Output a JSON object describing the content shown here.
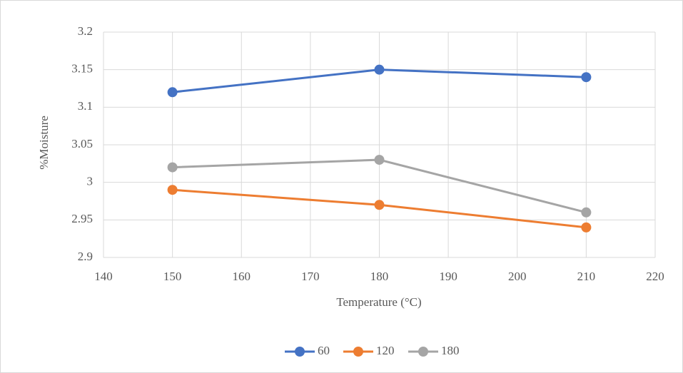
{
  "chart_data": {
    "type": "line",
    "x_label": "Temperature (°C)",
    "y_label": "%Moisture",
    "x": [
      150,
      180,
      210
    ],
    "series": [
      {
        "name": "60",
        "color": "#4472c4",
        "values": [
          3.12,
          3.15,
          3.14
        ]
      },
      {
        "name": "120",
        "color": "#ed7d31",
        "values": [
          2.99,
          2.97,
          2.94
        ]
      },
      {
        "name": "180",
        "color": "#a5a5a5",
        "values": [
          3.02,
          3.03,
          2.96
        ]
      }
    ],
    "xlim": [
      140,
      220
    ],
    "xticks": [
      140,
      150,
      160,
      170,
      180,
      190,
      200,
      210,
      220
    ],
    "ylim": [
      2.9,
      3.2
    ],
    "yticks": [
      2.9,
      2.95,
      3,
      3.05,
      3.1,
      3.15,
      3.2
    ],
    "grid": true,
    "legend": "bottom"
  }
}
